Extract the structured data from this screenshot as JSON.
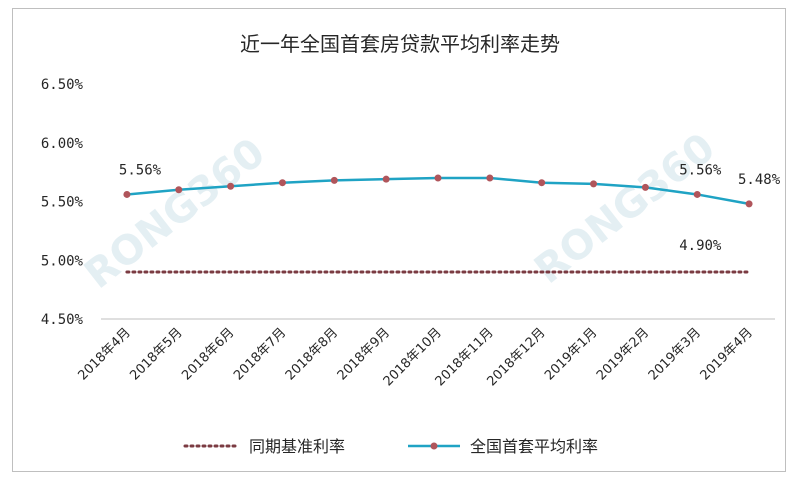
{
  "chart_data": {
    "type": "line",
    "title": "近一年全国首套房贷款平均利率走势",
    "categories": [
      "2018年4月",
      "2018年5月",
      "2018年6月",
      "2018年7月",
      "2018年8月",
      "2018年9月",
      "2018年10月",
      "2018年11月",
      "2018年12月",
      "2019年1月",
      "2019年2月",
      "2019年3月",
      "2019年4月"
    ],
    "y_ticks": [
      "6.50%",
      "6.00%",
      "5.50%",
      "5.00%",
      "4.50%"
    ],
    "ylim": [
      4.5,
      6.5
    ],
    "grid": false,
    "legend_position": "bottom",
    "series": [
      {
        "name": "同期基准利率",
        "style": "dotted",
        "color": "#7b3b42",
        "values": [
          4.9,
          4.9,
          4.9,
          4.9,
          4.9,
          4.9,
          4.9,
          4.9,
          4.9,
          4.9,
          4.9,
          4.9,
          4.9
        ]
      },
      {
        "name": "全国首套平均利率",
        "style": "line-marker",
        "color": "#1fa3c4",
        "marker_color": "#b0555b",
        "values": [
          5.56,
          5.6,
          5.63,
          5.66,
          5.68,
          5.69,
          5.7,
          5.7,
          5.66,
          5.65,
          5.62,
          5.56,
          5.48
        ]
      }
    ],
    "annotations": [
      "5.56%",
      "5.56%",
      "5.48%",
      "4.90%"
    ],
    "watermark": [
      "RONG360",
      "RONG360"
    ]
  }
}
